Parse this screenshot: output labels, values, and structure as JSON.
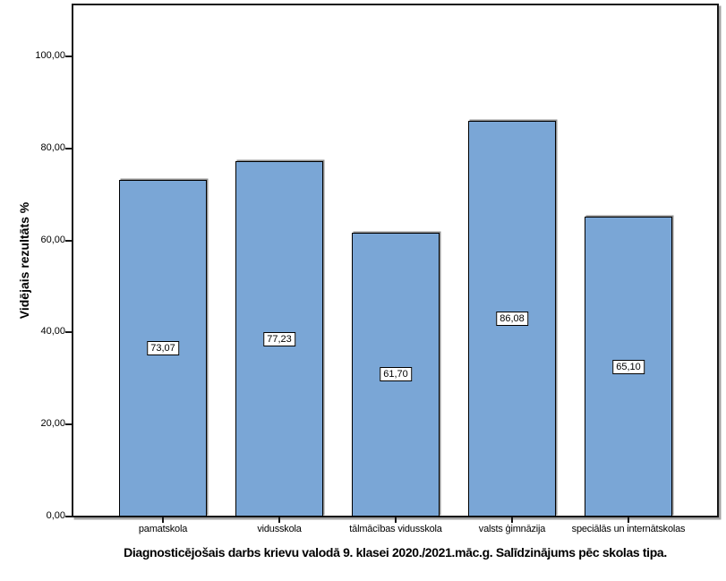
{
  "chart_data": {
    "type": "bar",
    "title": "Diagnosticējošais darbs krievu valodā 9. klasei 2020./2021.māc.g. Salīdzinājums pēc skolas tipa.",
    "ylabel": "Vidējais rezultāts %",
    "xlabel": "",
    "categories": [
      "pamatskola",
      "vidusskola",
      "tālmācības vidusskola",
      "valsts ģimnāzija",
      "speciālās un internātskolas"
    ],
    "values": [
      73.07,
      77.23,
      61.7,
      86.08,
      65.1
    ],
    "value_labels": [
      "73,07",
      "77,23",
      "61,70",
      "86,08",
      "65,10"
    ],
    "yticks": [
      0,
      20,
      40,
      60,
      80,
      100
    ],
    "ytick_labels": [
      "0,00",
      "20,00",
      "40,00",
      "60,00",
      "80,00",
      "100,00"
    ],
    "ylim": [
      0,
      111.5
    ],
    "grid": false,
    "legend": "none",
    "colors": {
      "bar_fill": "#7AA6D6",
      "bar_border": "#000000",
      "frame_border": "#161616",
      "shadow": "#a3a3a3",
      "text": "#000000",
      "background": "#ffffff"
    }
  }
}
